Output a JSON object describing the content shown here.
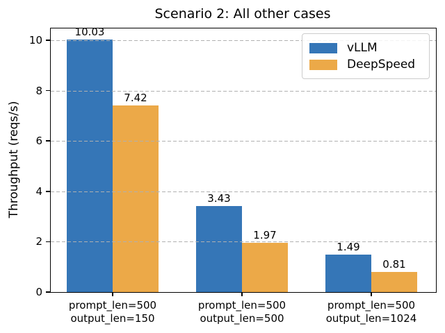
{
  "title": "Scenario 2: All other cases",
  "chart_data": {
    "type": "bar",
    "title": "Scenario 2: All other cases",
    "xlabel": "",
    "ylabel": "Throughput (reqs/s)",
    "categories": [
      [
        "prompt_len=500",
        "output_len=150"
      ],
      [
        "prompt_len=500",
        "output_len=500"
      ],
      [
        "prompt_len=500",
        "output_len=1024"
      ]
    ],
    "series": [
      {
        "name": "vLLM",
        "color": "#3576B7",
        "values": [
          10.03,
          3.43,
          1.49
        ],
        "value_labels": [
          "10.03",
          "3.43",
          "1.49"
        ]
      },
      {
        "name": "DeepSpeed",
        "color": "#ECA948",
        "values": [
          7.42,
          1.97,
          0.81
        ],
        "value_labels": [
          "7.42",
          "1.97",
          "0.81"
        ]
      }
    ],
    "yticks": [
      0,
      2,
      4,
      6,
      8,
      10
    ],
    "ytick_labels": [
      "0",
      "2",
      "4",
      "6",
      "8",
      "10"
    ],
    "ylim": [
      0,
      10.47
    ],
    "grid": "horizontal-dashed",
    "gridline_color": "#b0b0b0",
    "grid_over_bars": true,
    "legend_position": "upper-right",
    "value_labels_shown": true
  }
}
